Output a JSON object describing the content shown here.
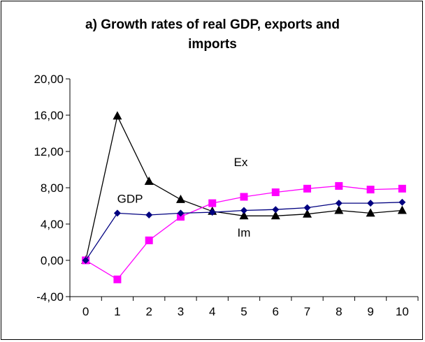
{
  "chart_data": {
    "type": "line",
    "title_line1": "a) Growth rates of real GDP, exports and",
    "title_line2": "imports",
    "x": [
      0,
      1,
      2,
      3,
      4,
      5,
      6,
      7,
      8,
      9,
      10
    ],
    "x_tick_labels": [
      "0",
      "1",
      "2",
      "3",
      "4",
      "5",
      "6",
      "7",
      "8",
      "9",
      "10"
    ],
    "y_tick_values": [
      -4,
      0,
      4,
      8,
      12,
      16,
      20
    ],
    "y_tick_labels": [
      "-4,00",
      "0,00",
      "4,00",
      "8,00",
      "12,00",
      "16,00",
      "20,00"
    ],
    "ylim": [
      -4,
      20
    ],
    "grid": false,
    "series": [
      {
        "label": "GDP",
        "color": "#000080",
        "marker": "diamond",
        "values": [
          0.0,
          5.2,
          5.0,
          5.2,
          5.3,
          5.5,
          5.6,
          5.8,
          6.3,
          6.3,
          6.4
        ]
      },
      {
        "label": "Ex",
        "color": "#ff00ff",
        "marker": "square",
        "values": [
          0.0,
          -2.1,
          2.2,
          4.8,
          6.3,
          7.0,
          7.5,
          7.9,
          8.2,
          7.8,
          7.9
        ]
      },
      {
        "label": "Im",
        "color": "#000000",
        "marker": "triangle",
        "values": [
          0.0,
          15.9,
          8.7,
          6.7,
          5.4,
          4.9,
          4.9,
          5.1,
          5.5,
          5.2,
          5.5
        ]
      }
    ]
  }
}
